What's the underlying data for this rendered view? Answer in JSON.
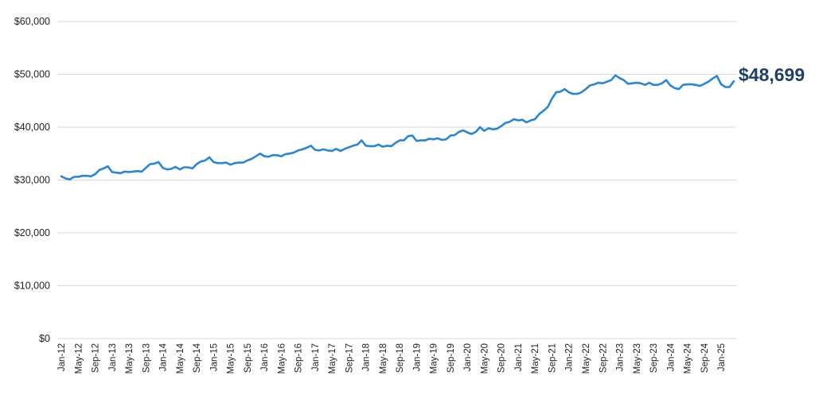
{
  "chart_data": {
    "type": "line",
    "title": "",
    "xlabel": "",
    "ylabel": "",
    "grid": true,
    "ylim": [
      0,
      60000
    ],
    "yticks": [
      0,
      10000,
      20000,
      30000,
      40000,
      50000,
      60000
    ],
    "ytick_labels": [
      "$0",
      "$10,000",
      "$20,000",
      "$30,000",
      "$40,000",
      "$50,000",
      "$60,000"
    ],
    "xtick_labels": [
      "Jan-12",
      "May-12",
      "Sep-12",
      "Jan-13",
      "May-13",
      "Sep-13",
      "Jan-14",
      "May-14",
      "Sep-14",
      "Jan-15",
      "May-15",
      "Sep-15",
      "Jan-16",
      "May-16",
      "Sep-16",
      "Jan-17",
      "May-17",
      "Sep-17",
      "Jan-18",
      "May-18",
      "Sep-18",
      "Jan-19",
      "May-19",
      "Sep-19",
      "Jan-20",
      "May-20",
      "Sep-20",
      "Jan-21",
      "May-21",
      "Sep-21",
      "Jan-22",
      "May-22",
      "Sep-22",
      "Jan-23",
      "May-23",
      "Sep-23",
      "Jan-24",
      "May-24",
      "Sep-24",
      "Jan-25"
    ],
    "line_color": "#2a86d0",
    "end_label_color": "#1f3f66",
    "end_label": "$48,699",
    "x_start": "Jan-12",
    "frequency": "monthly",
    "series": [
      {
        "values": [
          30700,
          30300,
          30100,
          30600,
          30600,
          30800,
          30800,
          30700,
          31100,
          31900,
          32200,
          32600,
          31500,
          31400,
          31300,
          31600,
          31500,
          31600,
          31700,
          31600,
          32300,
          33000,
          33100,
          33400,
          32300,
          32000,
          32100,
          32500,
          32000,
          32400,
          32400,
          32200,
          33000,
          33500,
          33700,
          34300,
          33400,
          33200,
          33200,
          33300,
          32900,
          33200,
          33300,
          33300,
          33700,
          34000,
          34500,
          35000,
          34500,
          34400,
          34700,
          34700,
          34500,
          34900,
          35000,
          35200,
          35600,
          35800,
          36100,
          36500,
          35700,
          35600,
          35800,
          35600,
          35500,
          35900,
          35500,
          35900,
          36200,
          36500,
          36700,
          37500,
          36500,
          36400,
          36400,
          36700,
          36300,
          36500,
          36400,
          37000,
          37500,
          37500,
          38300,
          38400,
          37400,
          37500,
          37500,
          37800,
          37700,
          37900,
          37600,
          37700,
          38400,
          38500,
          39100,
          39400,
          39000,
          38700,
          39100,
          40000,
          39300,
          39800,
          39600,
          39700,
          40200,
          40800,
          41000,
          41500,
          41300,
          41400,
          40900,
          41300,
          41500,
          42500,
          43100,
          43800,
          45400,
          46600,
          46700,
          47200,
          46600,
          46300,
          46300,
          46600,
          47200,
          47900,
          48100,
          48400,
          48300,
          48600,
          48900,
          49800,
          49300,
          48900,
          48200,
          48300,
          48400,
          48300,
          48000,
          48400,
          48000,
          48000,
          48300,
          48900,
          47900,
          47400,
          47200,
          48000,
          48100,
          48100,
          48000,
          47800,
          48200,
          48600,
          49200,
          49700,
          48100,
          47600,
          47600,
          48699
        ]
      }
    ]
  }
}
